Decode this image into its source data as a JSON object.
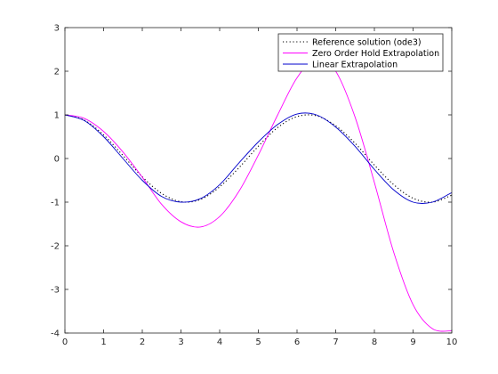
{
  "chart_data": {
    "type": "line",
    "xlim": [
      0,
      10
    ],
    "ylim": [
      -4,
      3
    ],
    "xticks": [
      0,
      1,
      2,
      3,
      4,
      5,
      6,
      7,
      8,
      9,
      10
    ],
    "yticks": [
      -4,
      -3,
      -2,
      -1,
      0,
      1,
      2,
      3
    ],
    "grid": false,
    "legend_position": "top-right",
    "title": "",
    "xlabel": "",
    "ylabel": "",
    "series": [
      {
        "name": "Reference solution (ode3)",
        "color": "#000000",
        "style": "dotted",
        "x": [
          0,
          0.5,
          1,
          1.5,
          2,
          2.5,
          3,
          3.5,
          4,
          4.5,
          5,
          5.5,
          6,
          6.5,
          7,
          7.5,
          8,
          8.5,
          9,
          9.5,
          10
        ],
        "y": [
          1,
          0.88,
          0.54,
          0.07,
          -0.42,
          -0.8,
          -0.99,
          -0.94,
          -0.65,
          -0.21,
          0.28,
          0.71,
          0.96,
          0.98,
          0.75,
          0.35,
          -0.15,
          -0.6,
          -0.91,
          -1.0,
          -0.84
        ]
      },
      {
        "name": "Zero Order Hold Extrapolation",
        "color": "#ff00ff",
        "style": "solid",
        "x": [
          0,
          0.5,
          1,
          1.5,
          2,
          2.5,
          3,
          3.5,
          4,
          4.5,
          5,
          5.5,
          6,
          6.5,
          7,
          7.5,
          8,
          8.5,
          9,
          9.5,
          10
        ],
        "y": [
          1,
          0.92,
          0.62,
          0.15,
          -0.43,
          -1.05,
          -1.45,
          -1.57,
          -1.33,
          -0.75,
          0.08,
          1.0,
          1.85,
          2.3,
          2.0,
          0.95,
          -0.55,
          -2.15,
          -3.35,
          -3.9,
          -3.95
        ]
      },
      {
        "name": "Linear Extrapolation",
        "color": "#0000cc",
        "style": "solid",
        "x": [
          0,
          0.5,
          1,
          1.5,
          2,
          2.5,
          3,
          3.5,
          4,
          4.5,
          5,
          5.5,
          6,
          6.5,
          7,
          7.5,
          8,
          8.5,
          9,
          9.5,
          10
        ],
        "y": [
          1,
          0.87,
          0.5,
          0.0,
          -0.5,
          -0.87,
          -1.0,
          -0.92,
          -0.6,
          -0.1,
          0.38,
          0.78,
          1.02,
          1.0,
          0.72,
          0.28,
          -0.25,
          -0.72,
          -1.0,
          -1.0,
          -0.78
        ]
      }
    ]
  }
}
